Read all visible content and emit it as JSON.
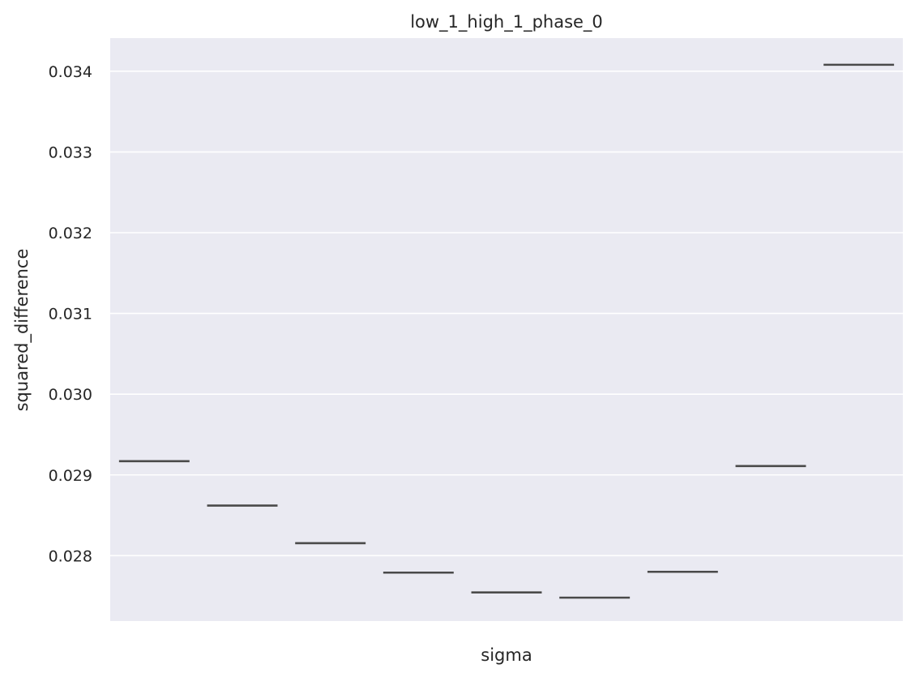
{
  "chart_data": {
    "type": "box",
    "title": "low_1_high_1_phase_0",
    "xlabel": "sigma",
    "ylabel": "squared_difference",
    "categories": [
      "",
      "",
      "",
      "",
      "",
      "",
      "",
      "",
      ""
    ],
    "values": [
      0.02917,
      0.02862,
      0.028155,
      0.02779,
      0.027545,
      0.02748,
      0.0278,
      0.02911,
      0.03408
    ],
    "ylim": [
      0.02719,
      0.03441
    ],
    "yticks": [
      "0.028",
      "0.029",
      "0.030",
      "0.031",
      "0.032",
      "0.033",
      "0.034"
    ],
    "grid": true,
    "colors": {
      "background": "#eaeaf2",
      "grid": "#ffffff",
      "box_line": "#4a4a4a"
    }
  }
}
